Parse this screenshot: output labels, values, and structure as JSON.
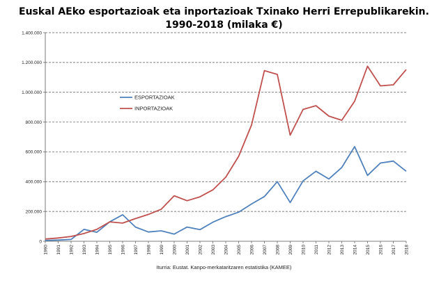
{
  "chart_data": {
    "type": "line",
    "title_line1": "Euskal AEko esportazioak eta inportazioak Txinako Herri Errepublikarekin.",
    "title_line2": "1990-2018 (milaka €)",
    "source": "Iturria: Eustat. Kanpo-merkataritzaren estatistika (KAMEE)",
    "x": [
      "1990",
      "1991",
      "1992",
      "1993",
      "1994",
      "1995",
      "1996",
      "1997",
      "1998",
      "1999",
      "2000",
      "2001",
      "2002",
      "2003",
      "2004",
      "2005",
      "2006",
      "2007",
      "2008",
      "2009",
      "2010",
      "2011",
      "2012",
      "2013",
      "2014",
      "2015",
      "2016",
      "2017",
      "2018"
    ],
    "y_ticks": [
      "0",
      "200.000",
      "400.000",
      "600.000",
      "800.000",
      "1.000.000",
      "1.200.000",
      "1.400.000"
    ],
    "ylim": [
      0,
      1400000
    ],
    "grid": true,
    "legend_position": "upper-left",
    "series": [
      {
        "name": "ESPORTAZIOAK",
        "color": "#4f81bd",
        "values": [
          5000,
          8000,
          12000,
          80000,
          60000,
          130000,
          178000,
          95000,
          62000,
          70000,
          48000,
          95000,
          78000,
          128000,
          165000,
          195000,
          250000,
          300000,
          400000,
          260000,
          405000,
          470000,
          418000,
          495000,
          635000,
          442000,
          525000,
          538000,
          470000
        ]
      },
      {
        "name": "INPORTAZIOAK",
        "color": "#c0504d",
        "values": [
          15000,
          22000,
          32000,
          52000,
          80000,
          130000,
          122000,
          152000,
          180000,
          215000,
          305000,
          272000,
          298000,
          345000,
          430000,
          570000,
          780000,
          1145000,
          1120000,
          712000,
          885000,
          910000,
          840000,
          812000,
          940000,
          1175000,
          1043000,
          1050000,
          1152000
        ]
      }
    ]
  }
}
